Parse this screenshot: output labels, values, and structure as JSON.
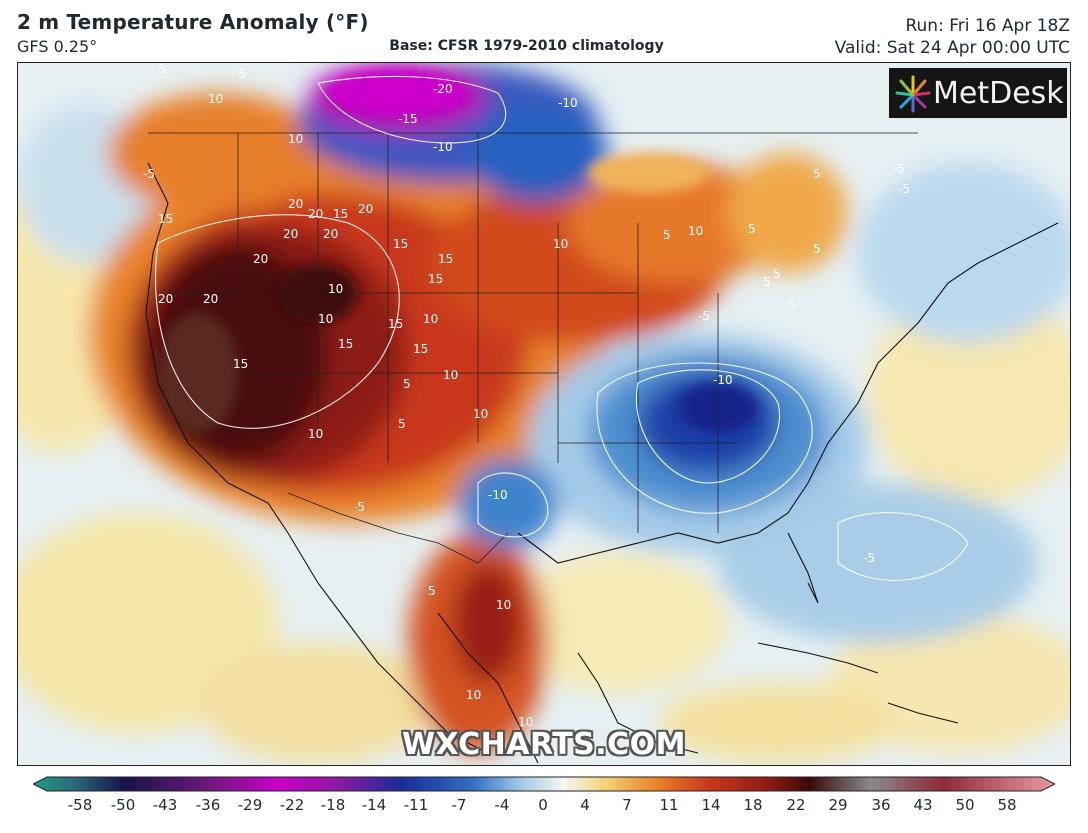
{
  "header": {
    "title": "2 m Temperature Anomaly (°F)",
    "model": "GFS 0.25°",
    "base": "Base: CFSR 1979-2010 climatology",
    "run": "Run: Fri 16 Apr 18Z",
    "valid": "Valid: Sat 24 Apr 00:00 UTC"
  },
  "logo": {
    "text": "MetDesk"
  },
  "watermark": "WXCHARTS.COM",
  "map_labels": [
    "-20",
    "-15",
    "-10",
    "-10",
    "-5",
    "-5",
    "10",
    "5",
    "5",
    "5",
    "10",
    "15",
    "20",
    "20",
    "20",
    "15",
    "20",
    "20",
    "20",
    "15",
    "15",
    "20",
    "20",
    "15",
    "10",
    "15",
    "15",
    "10",
    "15",
    "15",
    "10",
    "10",
    "10",
    "10",
    "5",
    "10",
    "5",
    "5",
    "5",
    "-5",
    "-10",
    "-10",
    "-5",
    "-5",
    "5",
    "10",
    "5",
    "10",
    "10",
    "10",
    "5",
    "5",
    "-5",
    "5"
  ],
  "colorbar": {
    "ticks": [
      "-58",
      "-50",
      "-43",
      "-36",
      "-29",
      "-22",
      "-18",
      "-14",
      "-11",
      "-7",
      "-4",
      "0",
      "4",
      "7",
      "11",
      "14",
      "18",
      "22",
      "29",
      "36",
      "43",
      "50",
      "58"
    ],
    "colors": {
      "teal": "#20a085",
      "dark_navy": "#17124a",
      "purple": "#6b1a7a",
      "magenta": "#c800c8",
      "deep_blue": "#1c2a9c",
      "blue": "#2f6fc0",
      "light_blue": "#a9cde8",
      "white": "#f5f7f2",
      "yellow": "#f2d178",
      "orange": "#e9832a",
      "red": "#b8241a",
      "dark_red": "#3a0a0a",
      "gray": "#8a8a8a",
      "pink": "#e89aa3"
    }
  }
}
